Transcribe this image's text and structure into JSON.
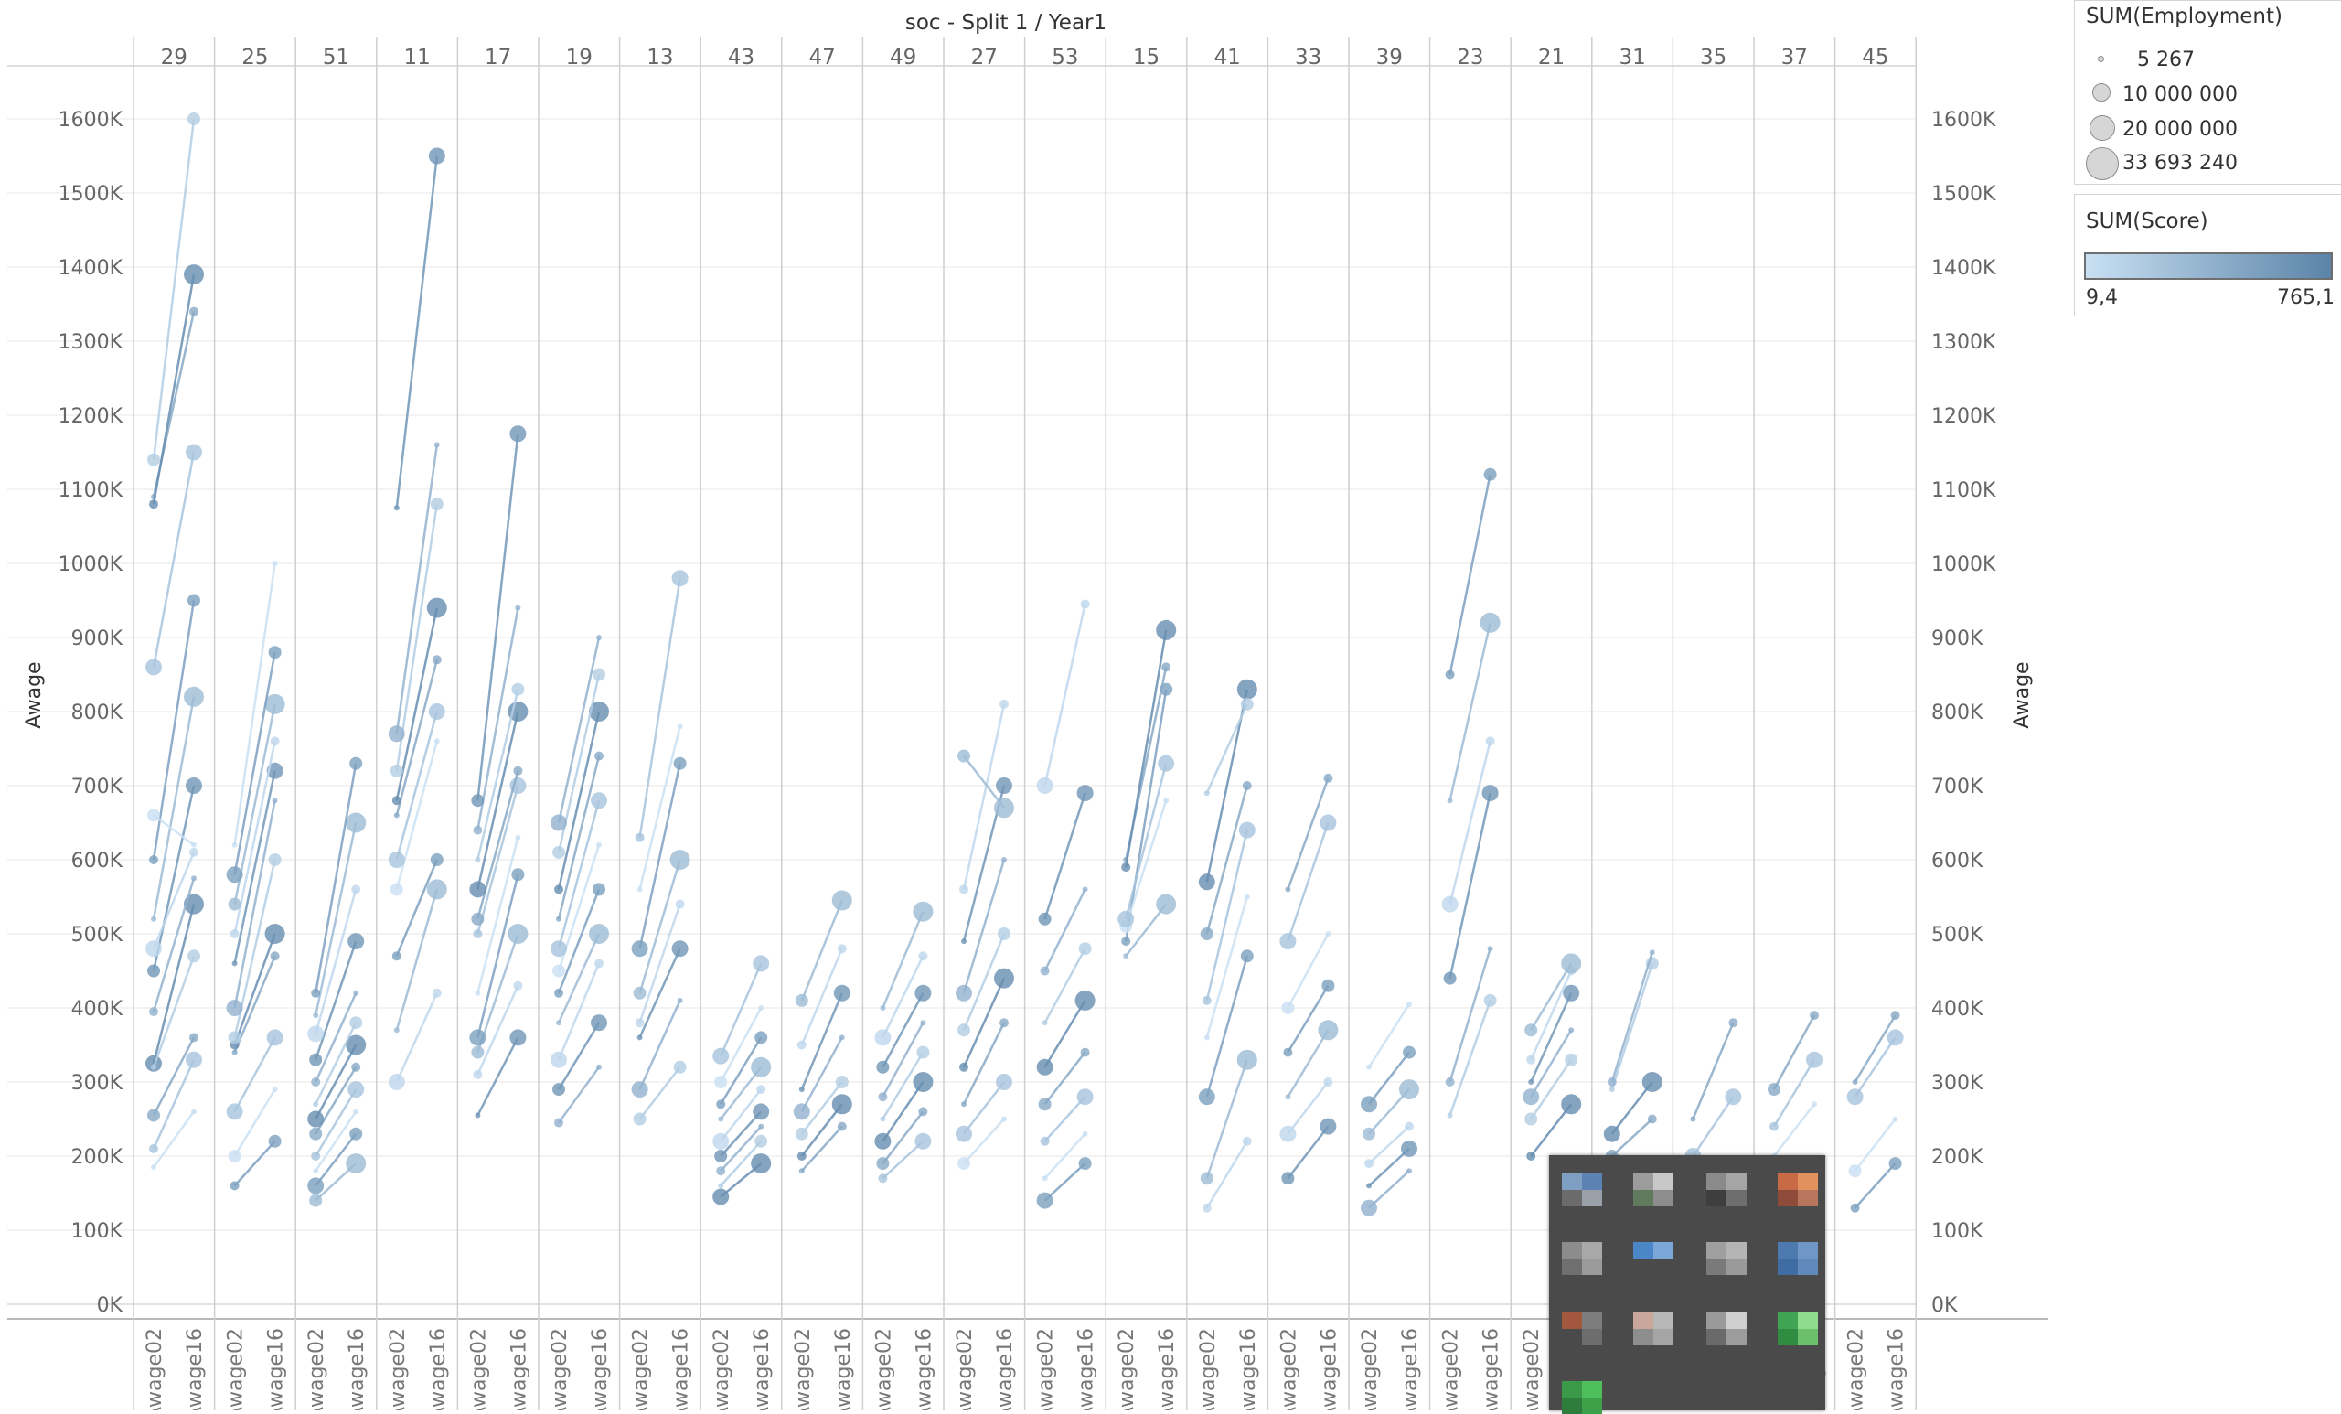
{
  "chart_data": {
    "type": "line",
    "title": "soc - Split 1 / Year1",
    "ylabel": "Awage",
    "ylim": [
      0,
      1700000
    ],
    "y_ticks": [
      "0K",
      "100K",
      "200K",
      "300K",
      "400K",
      "500K",
      "600K",
      "700K",
      "800K",
      "900K",
      "1000K",
      "1100K",
      "1200K",
      "1300K",
      "1400K",
      "1500K",
      "1600K"
    ],
    "x_sub_labels": [
      "Awage02",
      "Awage16"
    ],
    "columns": [
      {
        "label": "29",
        "series": [
          [
            185000,
            260000
          ],
          [
            210000,
            330000
          ],
          [
            255000,
            360000
          ],
          [
            325000,
            540000
          ],
          [
            320000,
            470000
          ],
          [
            395000,
            575000
          ],
          [
            450000,
            700000
          ],
          [
            480000,
            610000
          ],
          [
            520000,
            820000
          ],
          [
            600000,
            950000
          ],
          [
            660000,
            620000
          ],
          [
            860000,
            1150000
          ],
          [
            1090000,
            1340000
          ],
          [
            1080000,
            1390000
          ],
          [
            1140000,
            1600000
          ]
        ]
      },
      {
        "label": "25",
        "series": [
          [
            160000,
            220000
          ],
          [
            200000,
            290000
          ],
          [
            260000,
            360000
          ],
          [
            340000,
            470000
          ],
          [
            350000,
            500000
          ],
          [
            360000,
            600000
          ],
          [
            400000,
            680000
          ],
          [
            460000,
            720000
          ],
          [
            500000,
            760000
          ],
          [
            540000,
            810000
          ],
          [
            580000,
            880000
          ],
          [
            620000,
            1000000
          ]
        ]
      },
      {
        "label": "51",
        "series": [
          [
            140000,
            190000
          ],
          [
            160000,
            230000
          ],
          [
            180000,
            260000
          ],
          [
            200000,
            290000
          ],
          [
            230000,
            320000
          ],
          [
            250000,
            350000
          ],
          [
            270000,
            380000
          ],
          [
            300000,
            420000
          ],
          [
            330000,
            490000
          ],
          [
            365000,
            560000
          ],
          [
            390000,
            650000
          ],
          [
            420000,
            730000
          ]
        ]
      },
      {
        "label": "11",
        "series": [
          [
            300000,
            420000
          ],
          [
            370000,
            560000
          ],
          [
            470000,
            600000
          ],
          [
            560000,
            760000
          ],
          [
            600000,
            800000
          ],
          [
            660000,
            870000
          ],
          [
            680000,
            940000
          ],
          [
            720000,
            1080000
          ],
          [
            770000,
            1160000
          ],
          [
            1075000,
            1550000
          ]
        ]
      },
      {
        "label": "17",
        "series": [
          [
            255000,
            360000
          ],
          [
            310000,
            430000
          ],
          [
            340000,
            500000
          ],
          [
            360000,
            580000
          ],
          [
            420000,
            630000
          ],
          [
            500000,
            700000
          ],
          [
            520000,
            720000
          ],
          [
            560000,
            800000
          ],
          [
            600000,
            830000
          ],
          [
            640000,
            940000
          ],
          [
            680000,
            1175000
          ]
        ]
      },
      {
        "label": "19",
        "series": [
          [
            245000,
            320000
          ],
          [
            290000,
            380000
          ],
          [
            330000,
            460000
          ],
          [
            380000,
            500000
          ],
          [
            420000,
            560000
          ],
          [
            450000,
            620000
          ],
          [
            480000,
            680000
          ],
          [
            520000,
            740000
          ],
          [
            560000,
            800000
          ],
          [
            610000,
            850000
          ],
          [
            650000,
            900000
          ]
        ]
      },
      {
        "label": "13",
        "series": [
          [
            250000,
            320000
          ],
          [
            290000,
            410000
          ],
          [
            360000,
            480000
          ],
          [
            380000,
            540000
          ],
          [
            420000,
            600000
          ],
          [
            480000,
            730000
          ],
          [
            560000,
            780000
          ],
          [
            630000,
            980000
          ]
        ]
      },
      {
        "label": "43",
        "series": [
          [
            145000,
            190000
          ],
          [
            160000,
            220000
          ],
          [
            180000,
            240000
          ],
          [
            200000,
            260000
          ],
          [
            220000,
            290000
          ],
          [
            250000,
            320000
          ],
          [
            270000,
            360000
          ],
          [
            300000,
            400000
          ],
          [
            335000,
            460000
          ]
        ]
      },
      {
        "label": "47",
        "series": [
          [
            180000,
            240000
          ],
          [
            200000,
            270000
          ],
          [
            230000,
            300000
          ],
          [
            260000,
            360000
          ],
          [
            290000,
            420000
          ],
          [
            350000,
            480000
          ],
          [
            410000,
            545000
          ]
        ]
      },
      {
        "label": "49",
        "series": [
          [
            170000,
            220000
          ],
          [
            190000,
            260000
          ],
          [
            220000,
            300000
          ],
          [
            250000,
            340000
          ],
          [
            280000,
            380000
          ],
          [
            320000,
            420000
          ],
          [
            360000,
            470000
          ],
          [
            400000,
            530000
          ]
        ]
      },
      {
        "label": "27",
        "series": [
          [
            190000,
            250000
          ],
          [
            230000,
            300000
          ],
          [
            270000,
            380000
          ],
          [
            320000,
            440000
          ],
          [
            370000,
            500000
          ],
          [
            420000,
            600000
          ],
          [
            490000,
            700000
          ],
          [
            560000,
            810000
          ],
          [
            740000,
            670000
          ]
        ]
      },
      {
        "label": "53",
        "series": [
          [
            140000,
            190000
          ],
          [
            170000,
            230000
          ],
          [
            220000,
            280000
          ],
          [
            270000,
            340000
          ],
          [
            320000,
            410000
          ],
          [
            380000,
            480000
          ],
          [
            450000,
            560000
          ],
          [
            520000,
            690000
          ],
          [
            700000,
            945000
          ]
        ]
      },
      {
        "label": "15",
        "series": [
          [
            470000,
            540000
          ],
          [
            490000,
            830000
          ],
          [
            510000,
            680000
          ],
          [
            520000,
            730000
          ],
          [
            600000,
            860000
          ],
          [
            590000,
            910000
          ]
        ]
      },
      {
        "label": "41",
        "series": [
          [
            130000,
            220000
          ],
          [
            170000,
            330000
          ],
          [
            280000,
            470000
          ],
          [
            360000,
            550000
          ],
          [
            410000,
            640000
          ],
          [
            500000,
            700000
          ],
          [
            570000,
            830000
          ],
          [
            690000,
            810000
          ]
        ]
      },
      {
        "label": "33",
        "series": [
          [
            170000,
            240000
          ],
          [
            230000,
            300000
          ],
          [
            280000,
            370000
          ],
          [
            340000,
            430000
          ],
          [
            400000,
            500000
          ],
          [
            490000,
            650000
          ],
          [
            560000,
            710000
          ]
        ]
      },
      {
        "label": "39",
        "series": [
          [
            130000,
            180000
          ],
          [
            160000,
            210000
          ],
          [
            190000,
            240000
          ],
          [
            230000,
            290000
          ],
          [
            270000,
            340000
          ],
          [
            320000,
            405000
          ]
        ]
      },
      {
        "label": "23",
        "series": [
          [
            255000,
            410000
          ],
          [
            300000,
            480000
          ],
          [
            440000,
            690000
          ],
          [
            540000,
            760000
          ],
          [
            680000,
            920000
          ],
          [
            850000,
            1120000
          ]
        ]
      },
      {
        "label": "21",
        "series": [
          [
            200000,
            270000
          ],
          [
            250000,
            330000
          ],
          [
            280000,
            370000
          ],
          [
            300000,
            420000
          ],
          [
            330000,
            450000
          ],
          [
            370000,
            460000
          ]
        ]
      },
      {
        "label": "31",
        "series": [
          [
            200000,
            250000
          ],
          [
            230000,
            300000
          ],
          [
            290000,
            460000
          ],
          [
            300000,
            475000
          ]
        ]
      },
      {
        "label": "35",
        "series": [
          [
            200000,
            280000
          ],
          [
            250000,
            380000
          ]
        ]
      },
      {
        "label": "37",
        "series": [
          [
            200000,
            270000
          ],
          [
            240000,
            330000
          ],
          [
            290000,
            390000
          ]
        ]
      },
      {
        "label": "45",
        "series": [
          [
            130000,
            190000
          ],
          [
            180000,
            250000
          ],
          [
            280000,
            360000
          ],
          [
            300000,
            390000
          ]
        ]
      }
    ]
  },
  "legend_size": {
    "title": "SUM(Employment)",
    "items": [
      "5 267",
      "10 000 000",
      "20 000 000",
      "33 693 240"
    ]
  },
  "legend_color": {
    "title": "SUM(Score)",
    "min_label": "9,4",
    "max_label": "765,1",
    "colors": [
      "#c9e0f3",
      "#5b84a8"
    ]
  }
}
